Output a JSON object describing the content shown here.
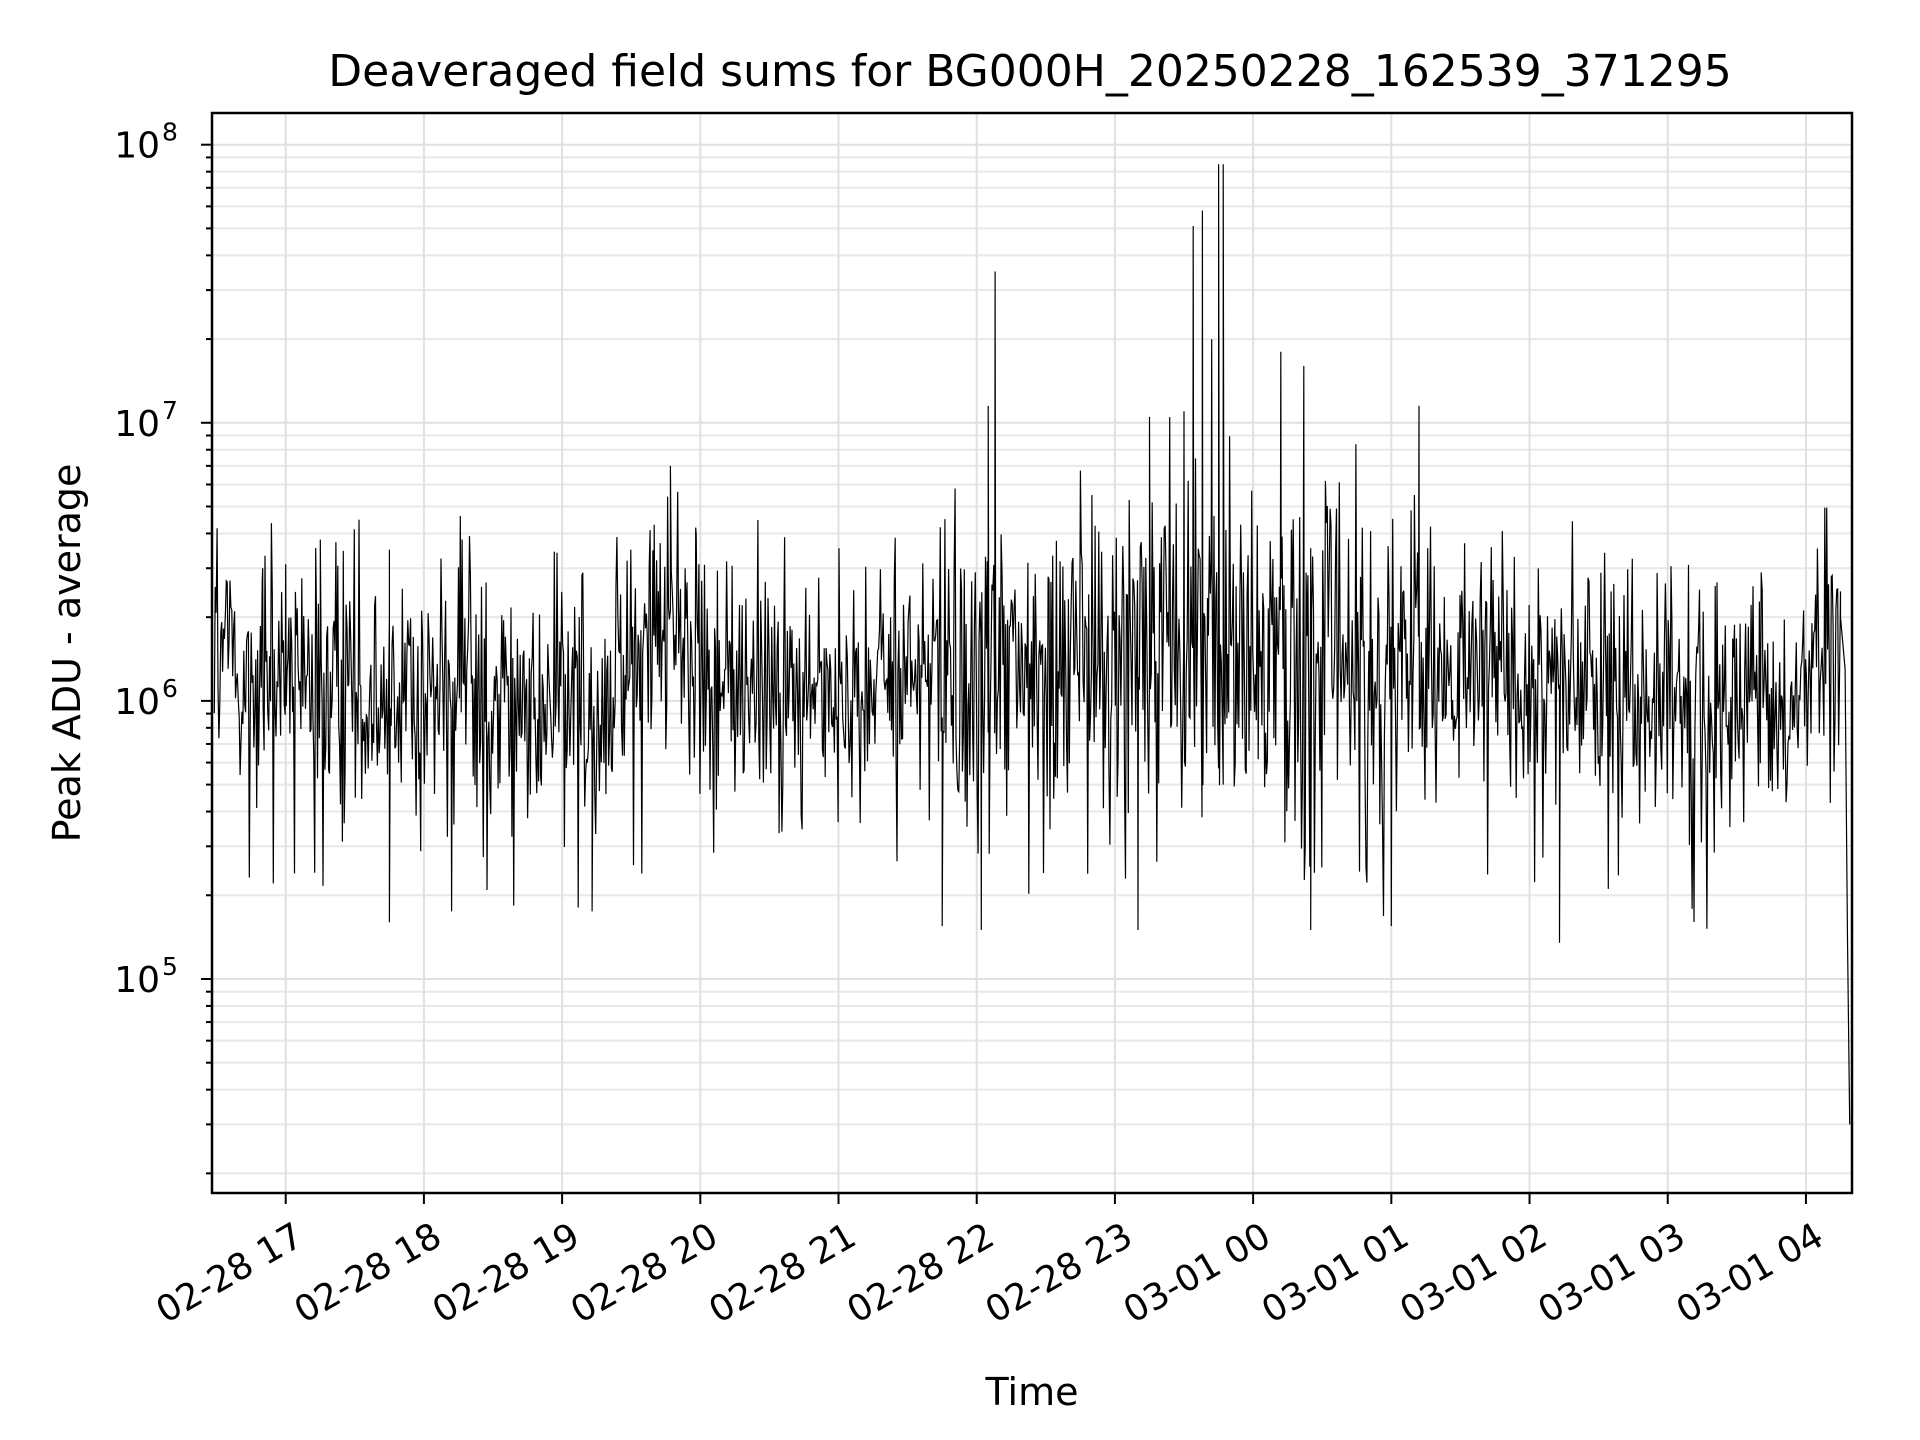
{
  "chart_data": {
    "type": "line",
    "title": "Deaveraged field sums for BG000H_20250228_162539_371295",
    "xlabel": "Time",
    "ylabel": "Peak ADU - average",
    "xlim": [
      "2025-02-28 16:28",
      "2025-03-01 04:20"
    ],
    "ylim": [
      17000,
      130000000
    ],
    "yscale": "log",
    "grid": true,
    "grid_minor_y": true,
    "line_color": "#000000",
    "x_tick_labels": [
      "02-28 17",
      "02-28 18",
      "02-28 19",
      "02-28 20",
      "02-28 21",
      "02-28 22",
      "02-28 23",
      "03-01 00",
      "03-01 01",
      "03-01 02",
      "03-01 03",
      "03-01 04"
    ],
    "y_ticks": [
      {
        "value": 100000,
        "base": "10",
        "exp": "5"
      },
      {
        "value": 1000000,
        "base": "10",
        "exp": "6"
      },
      {
        "value": 10000000,
        "base": "10",
        "exp": "7"
      },
      {
        "value": 100000000,
        "base": "10",
        "exp": "8"
      }
    ],
    "series": [
      {
        "x": [
          "2025-02-28 16:29",
          "2025-02-28 16:35",
          "2025-02-28 16:45",
          "2025-02-28 16:55",
          "2025-02-28 17:05",
          "2025-02-28 17:15",
          "2025-02-28 17:25",
          "2025-02-28 17:35",
          "2025-02-28 17:45",
          "2025-02-28 17:55",
          "2025-02-28 18:05",
          "2025-02-28 18:15",
          "2025-02-28 18:25",
          "2025-02-28 18:35",
          "2025-02-28 18:45",
          "2025-02-28 18:55",
          "2025-02-28 19:05",
          "2025-02-28 19:15",
          "2025-02-28 19:25",
          "2025-02-28 19:35",
          "2025-02-28 19:45",
          "2025-02-28 19:55",
          "2025-02-28 20:05",
          "2025-02-28 20:15",
          "2025-02-28 20:25",
          "2025-02-28 20:35",
          "2025-02-28 20:45",
          "2025-02-28 20:55",
          "2025-02-28 21:05",
          "2025-02-28 21:15",
          "2025-02-28 21:25",
          "2025-02-28 21:35",
          "2025-02-28 21:45",
          "2025-02-28 21:55",
          "2025-02-28 22:05",
          "2025-02-28 22:15",
          "2025-02-28 22:25",
          "2025-02-28 22:35",
          "2025-02-28 22:45",
          "2025-02-28 22:55",
          "2025-02-28 23:05",
          "2025-02-28 23:15",
          "2025-02-28 23:25",
          "2025-02-28 23:35",
          "2025-02-28 23:45",
          "2025-02-28 23:55",
          "2025-03-01 00:05",
          "2025-03-01 00:15",
          "2025-03-01 00:25",
          "2025-03-01 00:35",
          "2025-03-01 00:45",
          "2025-03-01 00:55",
          "2025-03-01 01:05",
          "2025-03-01 01:15",
          "2025-03-01 01:25",
          "2025-03-01 01:35",
          "2025-03-01 01:45",
          "2025-03-01 01:55",
          "2025-03-01 02:05",
          "2025-03-01 02:15",
          "2025-03-01 02:25",
          "2025-03-01 02:35",
          "2025-03-01 02:45",
          "2025-03-01 02:55",
          "2025-03-01 03:05",
          "2025-03-01 03:15",
          "2025-03-01 03:25",
          "2025-03-01 03:35",
          "2025-03-01 03:45",
          "2025-03-01 03:55",
          "2025-03-01 04:05",
          "2025-03-01 04:15",
          "2025-03-01 04:19"
        ],
        "y": [
          1800000,
          1400000,
          1200000,
          1100000,
          1300000,
          1000000,
          1250000,
          1200000,
          1150000,
          1300000,
          1000000,
          950000,
          1100000,
          900000,
          850000,
          1000000,
          1100000,
          1050000,
          1200000,
          1300000,
          1900000,
          1700000,
          1200000,
          1100000,
          1150000,
          1050000,
          1100000,
          1000000,
          950000,
          1050000,
          1100000,
          1150000,
          1200000,
          1150000,
          1300000,
          1250000,
          1200000,
          1350000,
          1500000,
          1400000,
          1400000,
          1450000,
          1500000,
          1550000,
          1600000,
          1500000,
          1450000,
          1400000,
          1350000,
          1300000,
          1350000,
          1300000,
          1250000,
          1300000,
          1250000,
          1200000,
          1250000,
          1200000,
          1150000,
          1100000,
          1150000,
          1100000,
          1050000,
          1000000,
          1000000,
          950000,
          900000,
          850000,
          800000,
          900000,
          1800000,
          1100000,
          30000
        ],
        "spikes": [
          {
            "x": "2025-02-28 16:50",
            "y": 3000000
          },
          {
            "x": "2025-02-28 17:00",
            "y": 3100000
          },
          {
            "x": "2025-02-28 17:15",
            "y": 3800000
          },
          {
            "x": "2025-02-28 17:45",
            "y": 3500000
          },
          {
            "x": "2025-02-28 19:40",
            "y": 4300000
          },
          {
            "x": "2025-02-28 19:47",
            "y": 7000000
          },
          {
            "x": "2025-02-28 19:58",
            "y": 4200000
          },
          {
            "x": "2025-02-28 22:05",
            "y": 11500000
          },
          {
            "x": "2025-02-28 22:08",
            "y": 35000000
          },
          {
            "x": "2025-02-28 22:50",
            "y": 5500000
          },
          {
            "x": "2025-02-28 23:15",
            "y": 10500000
          },
          {
            "x": "2025-02-28 23:30",
            "y": 11000000
          },
          {
            "x": "2025-02-28 23:34",
            "y": 51000000
          },
          {
            "x": "2025-02-28 23:38",
            "y": 58000000
          },
          {
            "x": "2025-02-28 23:42",
            "y": 20000000
          },
          {
            "x": "2025-02-28 23:45",
            "y": 85000000
          },
          {
            "x": "2025-02-28 23:47",
            "y": 85000000
          },
          {
            "x": "2025-03-01 00:12",
            "y": 18000000
          },
          {
            "x": "2025-03-01 00:22",
            "y": 16000000
          },
          {
            "x": "2025-03-01 01:10",
            "y": 5500000
          },
          {
            "x": "2025-03-01 01:12",
            "y": 11500000
          }
        ],
        "dips": [
          {
            "x": "2025-02-28 17:45",
            "y": 160000
          },
          {
            "x": "2025-02-28 18:12",
            "y": 175000
          },
          {
            "x": "2025-02-28 19:13",
            "y": 175000
          },
          {
            "x": "2025-02-28 21:45",
            "y": 155000
          },
          {
            "x": "2025-02-28 22:02",
            "y": 150000
          },
          {
            "x": "2025-02-28 23:10",
            "y": 150000
          },
          {
            "x": "2025-03-01 00:25",
            "y": 150000
          },
          {
            "x": "2025-03-01 01:00",
            "y": 155000
          },
          {
            "x": "2025-03-01 02:13",
            "y": 135000
          }
        ]
      }
    ]
  }
}
